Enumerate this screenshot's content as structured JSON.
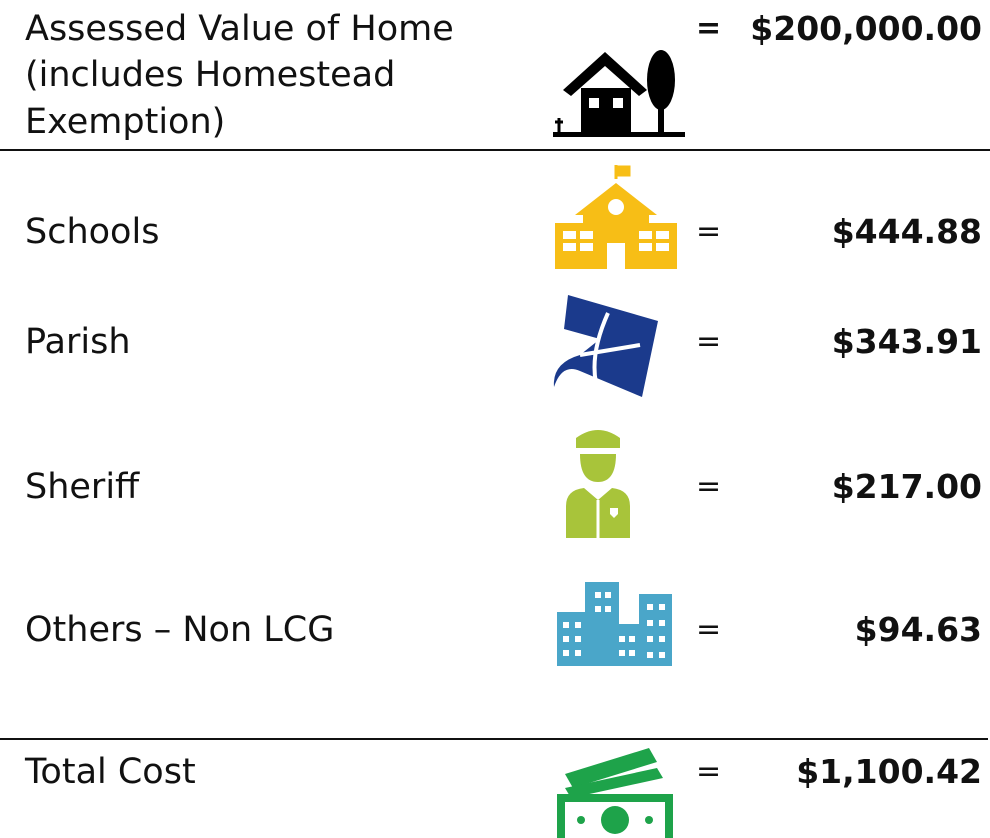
{
  "header": {
    "label_lines": [
      "Assessed Value of Home",
      "(includes Homestead",
      "Exemption)"
    ],
    "equals": "=",
    "value": "$200,000.00"
  },
  "rows": [
    {
      "label": "Schools",
      "equals": "=",
      "value": "$444.88"
    },
    {
      "label": "Parish",
      "equals": "=",
      "value": "$343.91"
    },
    {
      "label": "Sheriff",
      "equals": "=",
      "value": "$217.00"
    },
    {
      "label": "Others – Non LCG",
      "equals": "=",
      "value": "$94.63"
    }
  ],
  "total": {
    "label": "Total Cost",
    "equals": "=",
    "value": "$1,100.42"
  }
}
